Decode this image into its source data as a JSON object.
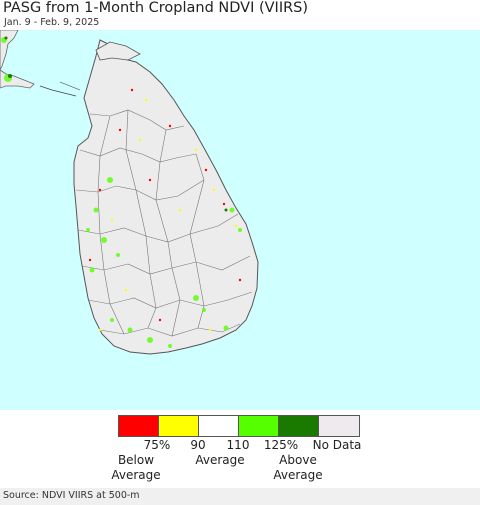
{
  "header": {
    "title": "PASG from 1-Month Cropland NDVI (VIIRS)",
    "date_range": "Jan. 9 - Feb. 9, 2025"
  },
  "colors": {
    "ocean": "#cfffff",
    "land": "#ececec",
    "border": "#666666",
    "below_75": "#ff0000",
    "75_90": "#ffff00",
    "90_110": "#ffffff",
    "110_125": "#55ff00",
    "above_125": "#1a7a00",
    "no_data": "#eeeaee"
  },
  "legend": {
    "ticks": [
      "75%",
      "90",
      "110",
      "125%",
      "No Data"
    ],
    "below": [
      "Below",
      "Average"
    ],
    "average": "Average",
    "above": [
      "Above",
      "Average"
    ]
  },
  "footer": {
    "source": "Source: NDVI VIIRS at 500-m"
  }
}
